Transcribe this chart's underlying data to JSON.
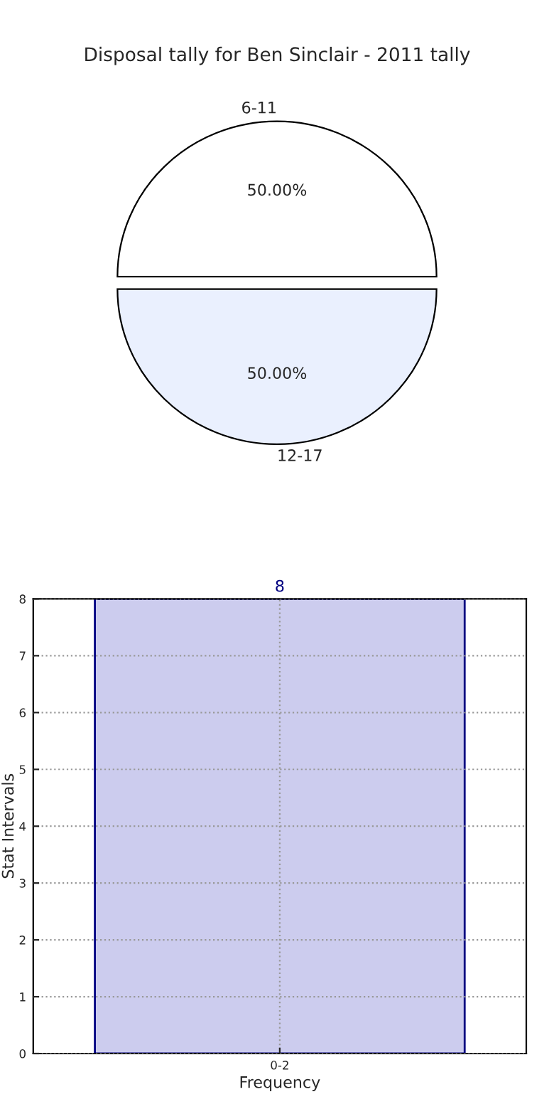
{
  "chart_data": [
    {
      "type": "pie",
      "title": "Disposal tally for Ben Sinclair - 2011 tally",
      "categories": [
        "6-11",
        "12-17"
      ],
      "values": [
        50,
        50
      ],
      "colors": [
        "#ffffff",
        "#eaf0fe"
      ],
      "value_labels": [
        "50.00%",
        "50.00%"
      ]
    },
    {
      "type": "bar",
      "categories": [
        "0-2"
      ],
      "values": [
        8
      ],
      "color": "#ccccee",
      "data_labels": true,
      "ylim": [
        0,
        8
      ],
      "yticks": [
        0,
        1,
        2,
        3,
        4,
        5,
        6,
        7,
        8
      ],
      "grid": true,
      "xlabel": "Frequency",
      "ylabel": "Stat Intervals"
    }
  ]
}
